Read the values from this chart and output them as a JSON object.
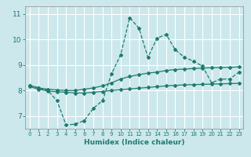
{
  "xlabel": "Humidex (Indice chaleur)",
  "background_color": "#cce8ec",
  "grid_color": "#ffffff",
  "line_color": "#1e7b6e",
  "xlim": [
    -0.5,
    23.5
  ],
  "ylim": [
    6.5,
    11.3
  ],
  "yticks": [
    7,
    8,
    9,
    10,
    11
  ],
  "xticks": [
    0,
    1,
    2,
    3,
    4,
    5,
    6,
    7,
    8,
    9,
    10,
    11,
    12,
    13,
    14,
    15,
    16,
    17,
    18,
    19,
    20,
    21,
    22,
    23
  ],
  "hours": [
    0,
    1,
    2,
    3,
    4,
    5,
    6,
    7,
    8,
    9,
    10,
    11,
    12,
    13,
    14,
    15,
    16,
    17,
    18,
    19,
    20,
    21,
    22,
    23
  ],
  "line_main": [
    8.2,
    8.1,
    8.0,
    7.6,
    6.65,
    6.68,
    6.82,
    7.3,
    7.6,
    8.65,
    9.4,
    10.85,
    10.45,
    9.3,
    10.05,
    10.2,
    9.6,
    9.3,
    9.15,
    8.95,
    8.3,
    8.45,
    8.45,
    8.72
  ],
  "line_upper": [
    8.2,
    8.1,
    8.05,
    8.02,
    8.0,
    8.0,
    8.05,
    8.1,
    8.18,
    8.3,
    8.45,
    8.55,
    8.62,
    8.68,
    8.72,
    8.78,
    8.82,
    8.84,
    8.86,
    8.88,
    8.89,
    8.9,
    8.91,
    8.92
  ],
  "line_lower": [
    8.15,
    8.05,
    7.98,
    7.95,
    7.93,
    7.9,
    7.9,
    7.93,
    7.96,
    8.0,
    8.03,
    8.06,
    8.09,
    8.12,
    8.15,
    8.18,
    8.2,
    8.22,
    8.23,
    8.24,
    8.25,
    8.26,
    8.27,
    8.28
  ]
}
